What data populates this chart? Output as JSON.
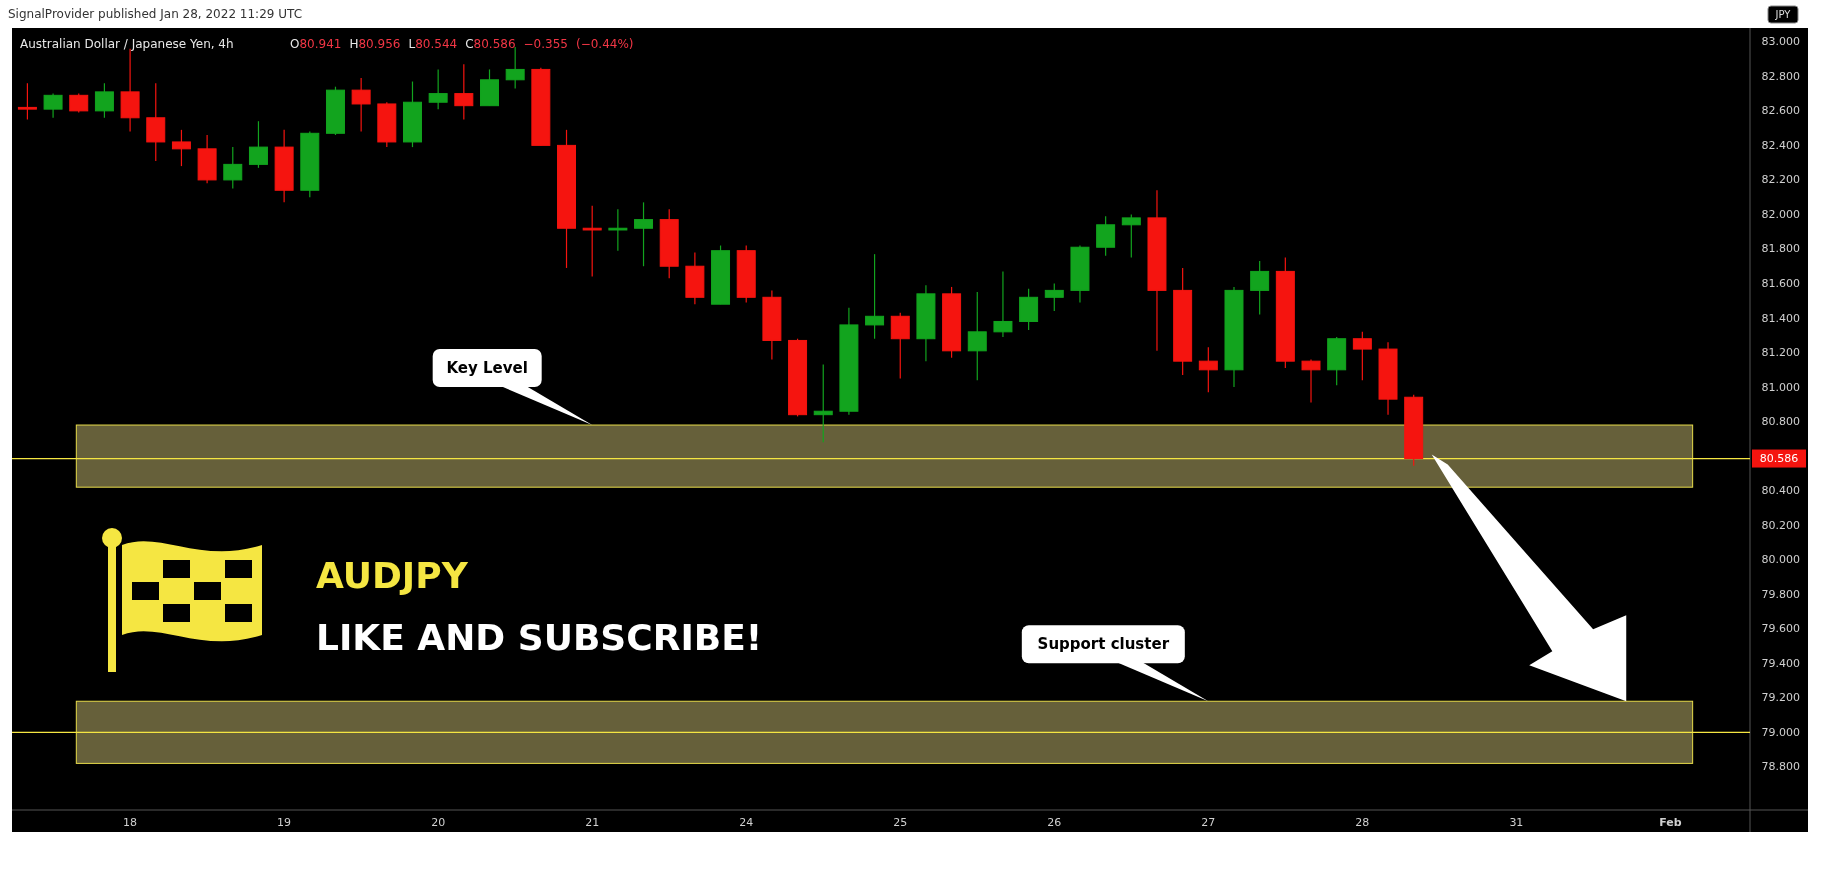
{
  "chart_data": {
    "type": "candlestick",
    "title": "Australian Dollar / Japanese Yen, 4h",
    "subtitle": "O80.941 H80.956 L80.544 C80.586 −0.355 (−0.44%)",
    "ylabel": "JPY",
    "categories": [
      null,
      null,
      null,
      null,
      "18",
      null,
      null,
      null,
      null,
      null,
      "19",
      null,
      null,
      null,
      null,
      null,
      "20",
      null,
      null,
      null,
      null,
      null,
      "21",
      null,
      null,
      null,
      null,
      null,
      "24",
      null,
      null,
      null,
      null,
      null,
      "25",
      null,
      null,
      null,
      null,
      null,
      "26",
      null,
      null,
      null,
      null,
      null,
      "27",
      null,
      null,
      null,
      null,
      null,
      "28",
      null,
      null,
      null,
      null,
      null,
      "31",
      null,
      null,
      null,
      null,
      null,
      "Feb",
      null,
      null
    ],
    "ohlc": [
      [
        82.62,
        82.76,
        82.55,
        82.61
      ],
      [
        82.61,
        82.7,
        82.56,
        82.69
      ],
      [
        82.69,
        82.7,
        82.59,
        82.6
      ],
      [
        82.6,
        82.76,
        82.56,
        82.71
      ],
      [
        82.71,
        82.96,
        82.48,
        82.56
      ],
      [
        82.56,
        82.76,
        82.31,
        82.42
      ],
      [
        82.42,
        82.49,
        82.28,
        82.38
      ],
      [
        82.38,
        82.46,
        82.18,
        82.2
      ],
      [
        82.2,
        82.39,
        82.15,
        82.29
      ],
      [
        82.29,
        82.54,
        82.27,
        82.39
      ],
      [
        82.39,
        82.49,
        82.07,
        82.14
      ],
      [
        82.14,
        82.48,
        82.1,
        82.47
      ],
      [
        82.47,
        82.74,
        82.46,
        82.72
      ],
      [
        82.72,
        82.79,
        82.48,
        82.64
      ],
      [
        82.64,
        82.65,
        82.39,
        82.42
      ],
      [
        82.42,
        82.77,
        82.39,
        82.65
      ],
      [
        82.65,
        82.84,
        82.61,
        82.7
      ],
      [
        82.7,
        82.87,
        82.55,
        82.63
      ],
      [
        82.63,
        82.84,
        82.63,
        82.78
      ],
      [
        82.78,
        82.97,
        82.73,
        82.84
      ],
      [
        82.84,
        82.85,
        82.4,
        82.4
      ],
      [
        82.4,
        82.49,
        81.69,
        81.92
      ],
      [
        81.92,
        82.05,
        81.64,
        81.91
      ],
      [
        81.91,
        82.03,
        81.79,
        81.92
      ],
      [
        81.92,
        82.07,
        81.7,
        81.97
      ],
      [
        81.97,
        82.03,
        81.63,
        81.7
      ],
      [
        81.7,
        81.78,
        81.48,
        81.52
      ],
      [
        81.48,
        81.82,
        81.48,
        81.79
      ],
      [
        81.79,
        81.82,
        81.49,
        81.52
      ],
      [
        81.52,
        81.56,
        81.16,
        81.27
      ],
      [
        81.27,
        81.28,
        80.83,
        80.84
      ],
      [
        80.84,
        81.13,
        80.68,
        80.86
      ],
      [
        80.86,
        81.46,
        80.84,
        81.36
      ],
      [
        81.36,
        81.77,
        81.28,
        81.41
      ],
      [
        81.41,
        81.43,
        81.05,
        81.28
      ],
      [
        81.28,
        81.59,
        81.15,
        81.54
      ],
      [
        81.54,
        81.58,
        81.17,
        81.21
      ],
      [
        81.21,
        81.55,
        81.04,
        81.32
      ],
      [
        81.32,
        81.67,
        81.29,
        81.38
      ],
      [
        81.38,
        81.57,
        81.33,
        81.52
      ],
      [
        81.52,
        81.6,
        81.44,
        81.56
      ],
      [
        81.56,
        81.82,
        81.49,
        81.81
      ],
      [
        81.81,
        81.99,
        81.76,
        81.94
      ],
      [
        81.94,
        82.0,
        81.75,
        81.98
      ],
      [
        81.98,
        82.14,
        81.21,
        81.56
      ],
      [
        81.56,
        81.69,
        81.07,
        81.15
      ],
      [
        81.15,
        81.23,
        80.97,
        81.1
      ],
      [
        81.1,
        81.58,
        81.0,
        81.56
      ],
      [
        81.56,
        81.73,
        81.42,
        81.67
      ],
      [
        81.67,
        81.75,
        81.11,
        81.15
      ],
      [
        81.15,
        81.16,
        80.91,
        81.1
      ],
      [
        81.1,
        81.29,
        81.01,
        81.28
      ],
      [
        81.28,
        81.32,
        81.04,
        81.22
      ],
      [
        81.22,
        81.26,
        80.84,
        80.93
      ],
      [
        80.941,
        80.956,
        80.544,
        80.586
      ],
      null,
      null,
      null,
      null,
      null,
      null,
      null,
      null,
      null,
      null,
      null,
      null
    ],
    "colors": [
      "#f5140f",
      "#12a41e",
      "#f5140f",
      "#12a41e",
      "#f5140f",
      "#f5140f",
      "#f5140f",
      "#f5140f",
      "#12a41e",
      "#12a41e",
      "#f5140f",
      "#12a41e",
      "#12a41e",
      "#f5140f",
      "#f5140f",
      "#12a41e",
      "#12a41e",
      "#f5140f",
      "#12a41e",
      "#12a41e",
      "#f5140f",
      "#f5140f",
      "#f5140f",
      "#12a41e",
      "#12a41e",
      "#f5140f",
      "#f5140f",
      "#12a41e",
      "#f5140f",
      "#f5140f",
      "#f5140f",
      "#12a41e",
      "#12a41e",
      "#12a41e",
      "#f5140f",
      "#12a41e",
      "#f5140f",
      "#12a41e",
      "#12a41e",
      "#12a41e",
      "#12a41e",
      "#12a41e",
      "#12a41e",
      "#12a41e",
      "#f5140f",
      "#f5140f",
      "#f5140f",
      "#12a41e",
      "#12a41e",
      "#f5140f",
      "#f5140f",
      "#12a41e",
      "#f5140f",
      "#f5140f",
      "#f5140f",
      null,
      null,
      null,
      null,
      null,
      null,
      null,
      null,
      null,
      null,
      null,
      null
    ],
    "ylim": [
      78.55,
      83.08
    ],
    "yticks": [
      {
        "value": 78.8,
        "label": "78.800"
      },
      {
        "value": 79,
        "label": "79.000"
      },
      {
        "value": 79.2,
        "label": "79.200"
      },
      {
        "value": 79.4,
        "label": "79.400"
      },
      {
        "value": 79.6,
        "label": "79.600"
      },
      {
        "value": 79.8,
        "label": "79.800"
      },
      {
        "value": 80,
        "label": "80.000"
      },
      {
        "value": 80.2,
        "label": "80.200"
      },
      {
        "value": 80.4,
        "label": "80.400"
      },
      {
        "value": 80.8,
        "label": "80.800"
      },
      {
        "value": 81,
        "label": "81.000"
      },
      {
        "value": 81.2,
        "label": "81.200"
      },
      {
        "value": 81.4,
        "label": "81.400"
      },
      {
        "value": 81.6,
        "label": "81.600"
      },
      {
        "value": 81.8,
        "label": "81.800"
      },
      {
        "value": 82,
        "label": "82.000"
      },
      {
        "value": 82.2,
        "label": "82.200"
      },
      {
        "value": 82.4,
        "label": "82.400"
      },
      {
        "value": 82.6,
        "label": "82.600"
      },
      {
        "value": 82.8,
        "label": "82.800"
      },
      {
        "value": 83,
        "label": "83.000"
      }
    ],
    "bands": [
      {
        "axis": "y",
        "from": 80.42,
        "to": 80.78,
        "color": "#66603a"
      },
      {
        "axis": "y",
        "from": 78.82,
        "to": 79.18,
        "color": "#66603a"
      }
    ],
    "ref_lines": [
      {
        "axis": "y",
        "value": 80.586,
        "label": "80.586",
        "color": "#f5e642"
      },
      {
        "axis": "y",
        "value": 79,
        "color": "#f5e642"
      }
    ],
    "annotations": [
      "SignalProvider published Jan 28, 2022 11:29 UTC",
      {
        "text": "Key Level",
        "x": "21",
        "y": 80.78
      },
      {
        "text": "Support cluster",
        "x": "27",
        "y": 79.18
      },
      "AUDJPY",
      "LIKE AND SUBSCRIBE!"
    ]
  }
}
